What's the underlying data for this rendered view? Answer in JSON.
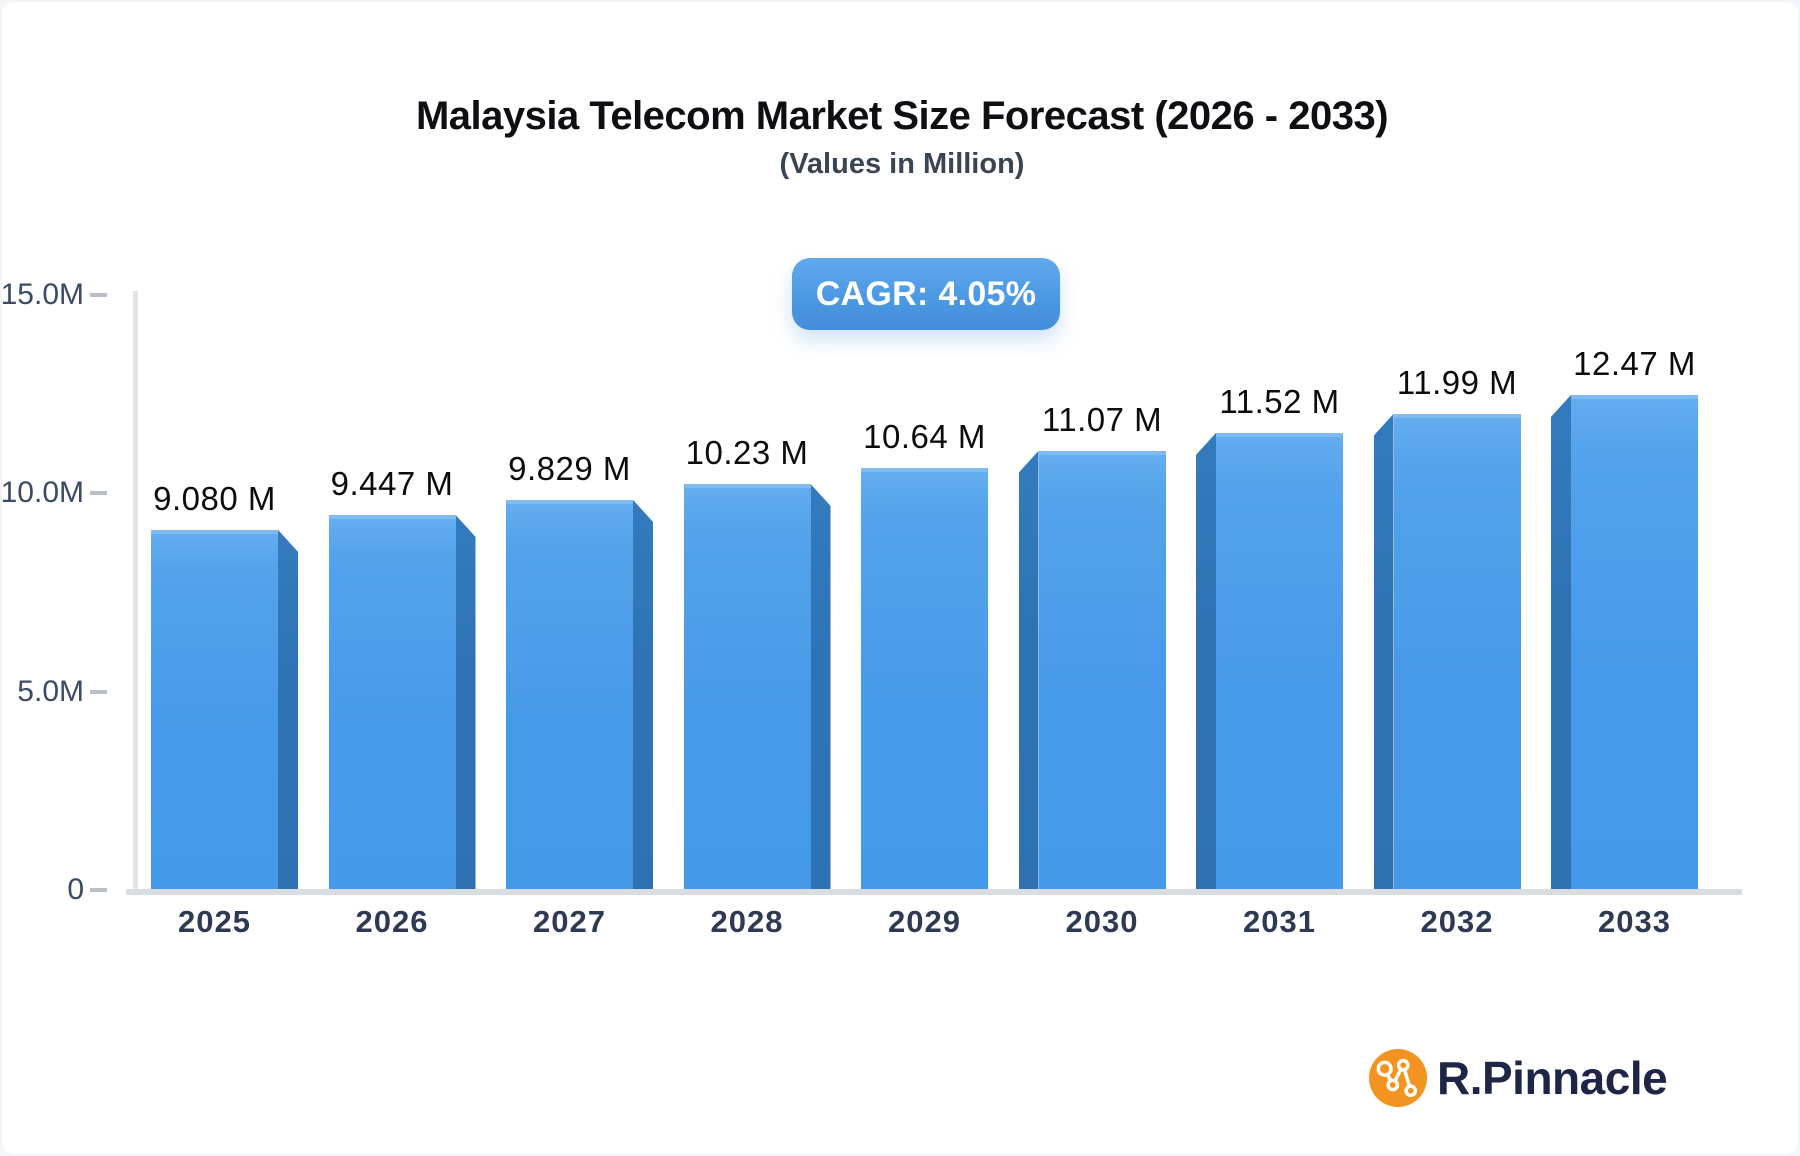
{
  "header": {
    "title": "Malaysia Telecom Market Size Forecast (2026 - 2033)",
    "subtitle": "(Values in Million)",
    "cagr_badge": "CAGR: 4.05%"
  },
  "colors": {
    "bar_face": "#479ae9",
    "bar_face_highlight": "#7fbbf2",
    "bar_side": "#2e74b5",
    "badge_blue": "#4f9ce5",
    "axis_gray": "#d9dce1",
    "label_dark": "#0b0c0e",
    "axis_text": "#3c4a63",
    "logo_orange": "#f2941f",
    "logo_navy": "#1f2547"
  },
  "logo": {
    "text": "R.Pinnacle",
    "icon": "network-nodes-icon"
  },
  "chart_data": {
    "type": "bar",
    "title": "Malaysia Telecom Market Size Forecast (2026 - 2033)",
    "subtitle": "(Values in Million)",
    "cagr_percent": 4.05,
    "categories": [
      "2025",
      "2026",
      "2027",
      "2028",
      "2029",
      "2030",
      "2031",
      "2032",
      "2033"
    ],
    "values": [
      9.08,
      9.447,
      9.829,
      10.23,
      10.64,
      11.07,
      11.52,
      11.99,
      12.47
    ],
    "value_labels": [
      "9.080 M",
      "9.447 M",
      "9.829 M",
      "10.23 M",
      "10.64 M",
      "11.07 M",
      "11.52 M",
      "11.99 M",
      "12.47 M"
    ],
    "unit": "Million",
    "xlabel": "",
    "ylabel": "",
    "ylim": [
      0,
      15
    ],
    "y_ticks": [
      {
        "label": "15.0M",
        "value": 15
      },
      {
        "label": "10.0M",
        "value": 10
      },
      {
        "label": "5.0M",
        "value": 5
      },
      {
        "label": "0",
        "value": 0
      }
    ],
    "grid": false,
    "legend": false,
    "style": "3d-bars, depth faces toward center bar"
  }
}
